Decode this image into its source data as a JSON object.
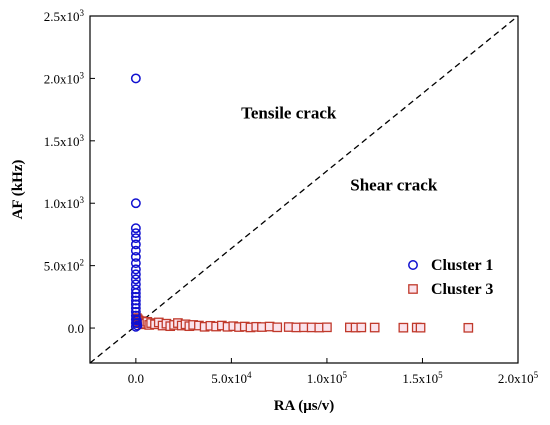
{
  "chart_data": {
    "type": "scatter",
    "xlabel": "RA (μs/v)",
    "ylabel": "AF (kHz)",
    "xlim": [
      -24000,
      200000
    ],
    "ylim": [
      -280,
      2500
    ],
    "x_ticks": [
      {
        "value": 0,
        "base": "0.0",
        "exp": ""
      },
      {
        "value": 50000,
        "base": "5.0x10",
        "exp": "4"
      },
      {
        "value": 100000,
        "base": "1.0x10",
        "exp": "5"
      },
      {
        "value": 150000,
        "base": "1.5x10",
        "exp": "5"
      },
      {
        "value": 200000,
        "base": "2.0x10",
        "exp": "5"
      }
    ],
    "y_ticks": [
      {
        "value": 0,
        "base": "0.0",
        "exp": ""
      },
      {
        "value": 500,
        "base": "5.0x10",
        "exp": "2"
      },
      {
        "value": 1000,
        "base": "1.0x10",
        "exp": "3"
      },
      {
        "value": 1500,
        "base": "1.5x10",
        "exp": "3"
      },
      {
        "value": 2000,
        "base": "2.0x10",
        "exp": "3"
      },
      {
        "value": 2500,
        "base": "2.5x10",
        "exp": "3"
      }
    ],
    "annotations": [
      {
        "text": "Tensile crack",
        "x": 80000,
        "y": 1680
      },
      {
        "text": "Shear crack",
        "x": 135000,
        "y": 1100
      }
    ],
    "diagonal_line": {
      "from": [
        -24000,
        -280
      ],
      "to": [
        200000,
        2500
      ],
      "style": "dashed"
    },
    "legend_position": "bottom-right",
    "series": [
      {
        "name": "Cluster 1",
        "marker": "circle",
        "color": "#1010d0",
        "points": [
          [
            0,
            2000
          ],
          [
            0,
            1000
          ],
          [
            0,
            800
          ],
          [
            0,
            760
          ],
          [
            0,
            720
          ],
          [
            0,
            670
          ],
          [
            0,
            620
          ],
          [
            0,
            570
          ],
          [
            0,
            520
          ],
          [
            0,
            470
          ],
          [
            0,
            430
          ],
          [
            0,
            390
          ],
          [
            0,
            350
          ],
          [
            0,
            310
          ],
          [
            0,
            280
          ],
          [
            0,
            250
          ],
          [
            0,
            220
          ],
          [
            0,
            190
          ],
          [
            0,
            160
          ],
          [
            0,
            130
          ],
          [
            0,
            100
          ],
          [
            0,
            70
          ],
          [
            0,
            40
          ],
          [
            0,
            10
          ],
          [
            500,
            60
          ],
          [
            600,
            40
          ],
          [
            800,
            20
          ]
        ]
      },
      {
        "name": "Cluster 3",
        "marker": "square",
        "color": "#c0392b",
        "points": [
          [
            500,
            80
          ],
          [
            1000,
            70
          ],
          [
            1500,
            60
          ],
          [
            2000,
            50
          ],
          [
            2500,
            40
          ],
          [
            3000,
            55
          ],
          [
            3500,
            30
          ],
          [
            4000,
            45
          ],
          [
            5000,
            35
          ],
          [
            6000,
            50
          ],
          [
            7000,
            25
          ],
          [
            8000,
            40
          ],
          [
            10000,
            30
          ],
          [
            12000,
            45
          ],
          [
            14000,
            20
          ],
          [
            16000,
            35
          ],
          [
            18000,
            15
          ],
          [
            20000,
            25
          ],
          [
            22000,
            40
          ],
          [
            24000,
            20
          ],
          [
            26000,
            30
          ],
          [
            28000,
            15
          ],
          [
            30000,
            25
          ],
          [
            33000,
            20
          ],
          [
            36000,
            10
          ],
          [
            39000,
            18
          ],
          [
            42000,
            12
          ],
          [
            45000,
            20
          ],
          [
            48000,
            10
          ],
          [
            51000,
            15
          ],
          [
            54000,
            8
          ],
          [
            57000,
            12
          ],
          [
            60000,
            5
          ],
          [
            63000,
            10
          ],
          [
            66000,
            8
          ],
          [
            70000,
            12
          ],
          [
            74000,
            6
          ],
          [
            80000,
            8
          ],
          [
            84000,
            5
          ],
          [
            88000,
            6
          ],
          [
            92000,
            5
          ],
          [
            96000,
            4
          ],
          [
            100000,
            6
          ],
          [
            112000,
            5
          ],
          [
            115000,
            4
          ],
          [
            118000,
            5
          ],
          [
            125000,
            4
          ],
          [
            140000,
            3
          ],
          [
            147000,
            4
          ],
          [
            149000,
            3
          ],
          [
            174000,
            2
          ]
        ]
      }
    ]
  }
}
